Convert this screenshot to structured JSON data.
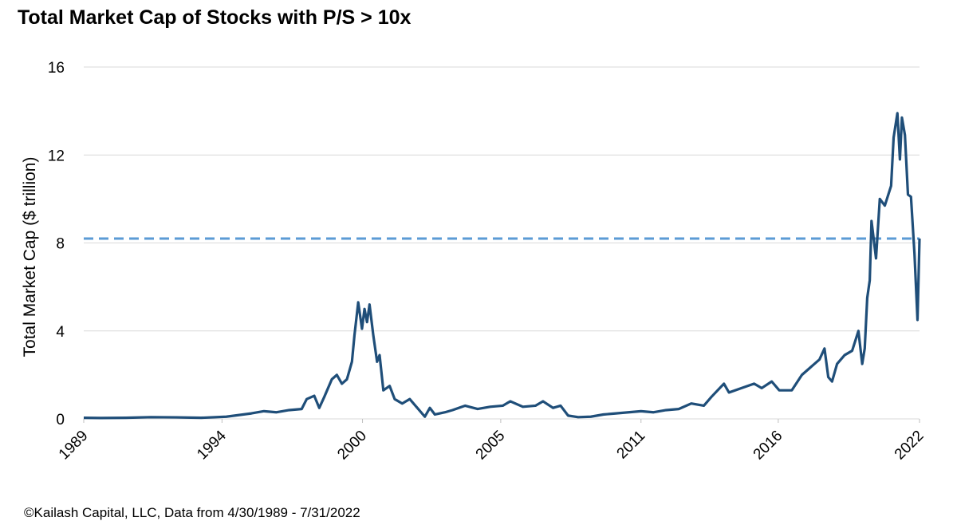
{
  "chart_data": {
    "type": "line",
    "title": "Total Market Cap of Stocks with P/S > 10x",
    "y_label": "Total Market Cap ($ trillion)",
    "source": "©Kailash Capital, LLC, Data from 4/30/1989 - 7/31/2022",
    "x": [
      1989.33,
      1990,
      1991,
      1992,
      1993,
      1994,
      1995,
      1996,
      1996.5,
      1997,
      1997.5,
      1998,
      1998.2,
      1998.5,
      1998.7,
      1998.9,
      1999.2,
      1999.4,
      1999.6,
      1999.8,
      2000.0,
      2000.1,
      2000.25,
      2000.4,
      2000.5,
      2000.6,
      2000.7,
      2000.85,
      2001.0,
      2001.1,
      2001.25,
      2001.5,
      2001.7,
      2002.0,
      2002.3,
      2002.6,
      2002.9,
      2003.1,
      2003.3,
      2003.7,
      2004.0,
      2004.5,
      2005.0,
      2005.5,
      2006.0,
      2006.3,
      2006.8,
      2007.3,
      2007.6,
      2008.0,
      2008.3,
      2008.6,
      2009.0,
      2009.5,
      2010.0,
      2010.5,
      2011.0,
      2011.5,
      2012.0,
      2012.5,
      2013.0,
      2013.5,
      2014.0,
      2014.3,
      2014.8,
      2015.0,
      2015.5,
      2016.0,
      2016.3,
      2016.7,
      2017.0,
      2017.5,
      2017.9,
      2018.3,
      2018.6,
      2018.8,
      2018.95,
      2019.1,
      2019.3,
      2019.6,
      2019.9,
      2020.15,
      2020.3,
      2020.4,
      2020.5,
      2020.6,
      2020.67,
      2020.85,
      2021.0,
      2021.2,
      2021.45,
      2021.55,
      2021.7,
      2021.8,
      2021.88,
      2022.0,
      2022.12,
      2022.24,
      2022.38,
      2022.5,
      2022.58
    ],
    "series": [
      {
        "name": "Total Market Cap",
        "color": "#1f4e79",
        "values": [
          0.05,
          0.04,
          0.05,
          0.08,
          0.07,
          0.05,
          0.1,
          0.25,
          0.35,
          0.3,
          0.4,
          0.45,
          0.9,
          1.05,
          0.5,
          1.0,
          1.8,
          2.0,
          1.6,
          1.8,
          2.6,
          3.8,
          5.3,
          4.1,
          5.0,
          4.4,
          5.2,
          3.8,
          2.6,
          2.9,
          1.3,
          1.5,
          0.9,
          0.7,
          0.9,
          0.5,
          0.1,
          0.5,
          0.2,
          0.3,
          0.4,
          0.6,
          0.45,
          0.55,
          0.6,
          0.8,
          0.55,
          0.6,
          0.8,
          0.5,
          0.6,
          0.15,
          0.08,
          0.1,
          0.2,
          0.25,
          0.3,
          0.35,
          0.3,
          0.4,
          0.45,
          0.7,
          0.6,
          1.0,
          1.6,
          1.2,
          1.4,
          1.6,
          1.4,
          1.7,
          1.3,
          1.3,
          2.0,
          2.4,
          2.7,
          3.2,
          1.9,
          1.7,
          2.5,
          2.9,
          3.1,
          4.0,
          2.5,
          3.2,
          5.5,
          6.3,
          9.0,
          7.3,
          10.0,
          9.7,
          10.6,
          12.8,
          13.9,
          11.8,
          13.7,
          12.9,
          10.2,
          10.1,
          7.5,
          4.5,
          8.2
        ]
      }
    ],
    "reference_line": {
      "value": 8.2,
      "color": "#5b9bd5",
      "style": "dashed"
    },
    "xlim": [
      1989.33,
      2022.58
    ],
    "xticks": [
      {
        "value": 1989.33,
        "label": "1989"
      },
      {
        "value": 1994.83,
        "label": "1994"
      },
      {
        "value": 2000.42,
        "label": "2000"
      },
      {
        "value": 2005.92,
        "label": "2005"
      },
      {
        "value": 2011.5,
        "label": "2011"
      },
      {
        "value": 2016.96,
        "label": "2016"
      },
      {
        "value": 2022.58,
        "label": "2022"
      }
    ],
    "ylim": [
      0,
      16
    ],
    "yticks": [
      0,
      4,
      8,
      12,
      16
    ],
    "grid": true
  }
}
